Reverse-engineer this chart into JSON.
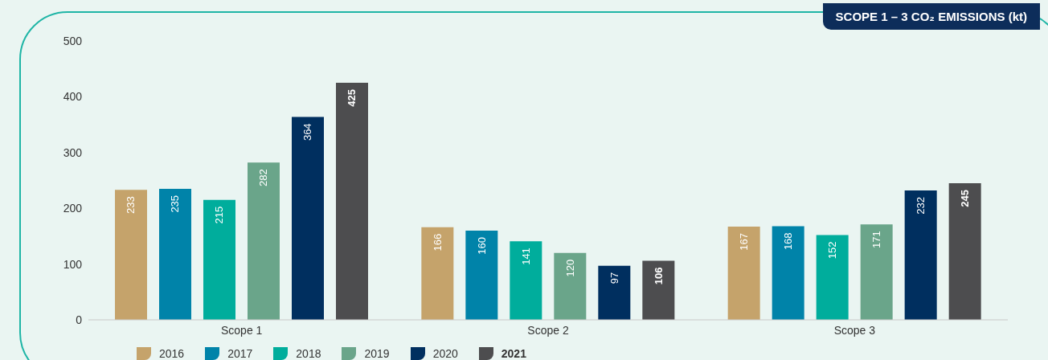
{
  "chart_data": {
    "type": "bar",
    "title": "SCOPE 1 – 3 CO₂ EMISSIONS (kt)",
    "categories": [
      "Scope 1",
      "Scope 2",
      "Scope 3"
    ],
    "series": [
      {
        "name": "2016",
        "color": "#c5a36b",
        "values": [
          233,
          166,
          167
        ]
      },
      {
        "name": "2017",
        "color": "#0083a9",
        "values": [
          235,
          160,
          168
        ]
      },
      {
        "name": "2018",
        "color": "#00ad9c",
        "values": [
          215,
          141,
          152
        ]
      },
      {
        "name": "2019",
        "color": "#6aa58a",
        "values": [
          282,
          120,
          171
        ]
      },
      {
        "name": "2020",
        "color": "#002f5f",
        "values": [
          364,
          97,
          232
        ]
      },
      {
        "name": "2021",
        "color": "#4d4d4f",
        "values": [
          425,
          106,
          245
        ]
      }
    ],
    "ylim": [
      0,
      500
    ],
    "yticks": [
      0,
      100,
      200,
      300,
      400,
      500
    ],
    "grid": false,
    "legend": "bottom left",
    "data_labels": true
  }
}
